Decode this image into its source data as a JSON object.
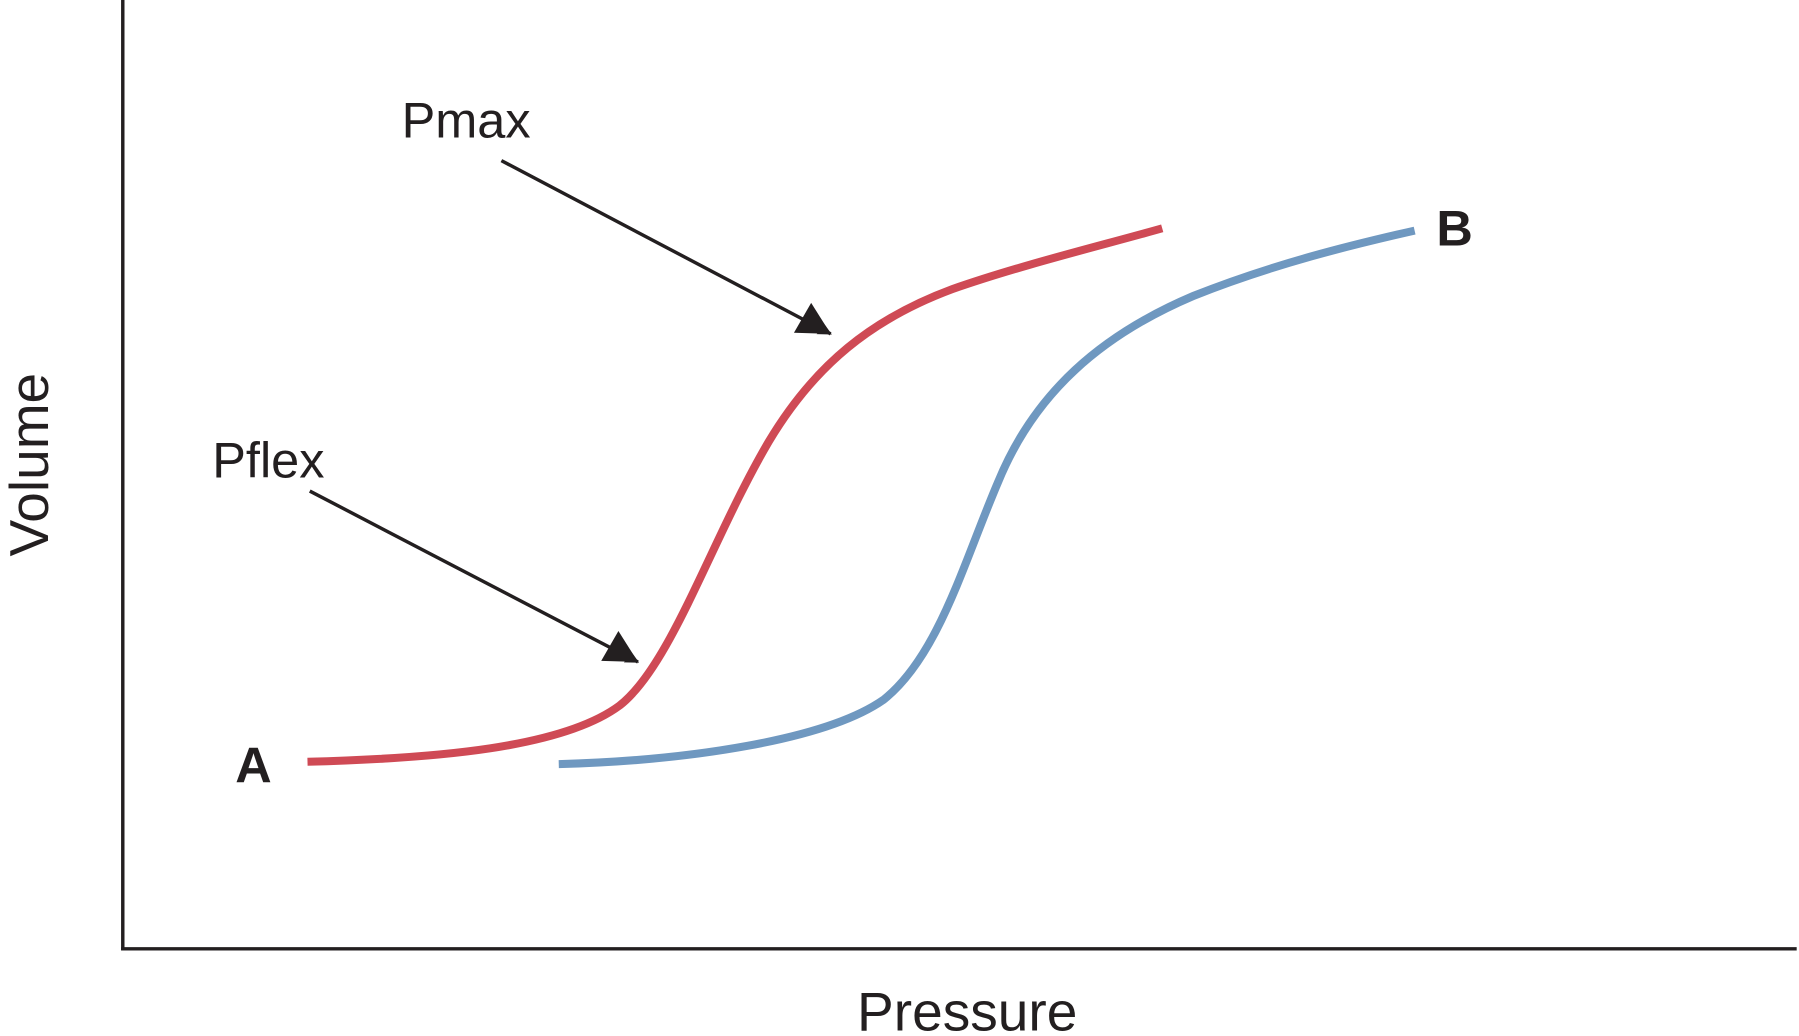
{
  "axes": {
    "y_label": "Volume",
    "x_label": "Pressure"
  },
  "annotations": {
    "pmax": "Pmax",
    "pflex": "Pflex"
  },
  "curve_labels": {
    "start": "A",
    "end": "B"
  }
}
